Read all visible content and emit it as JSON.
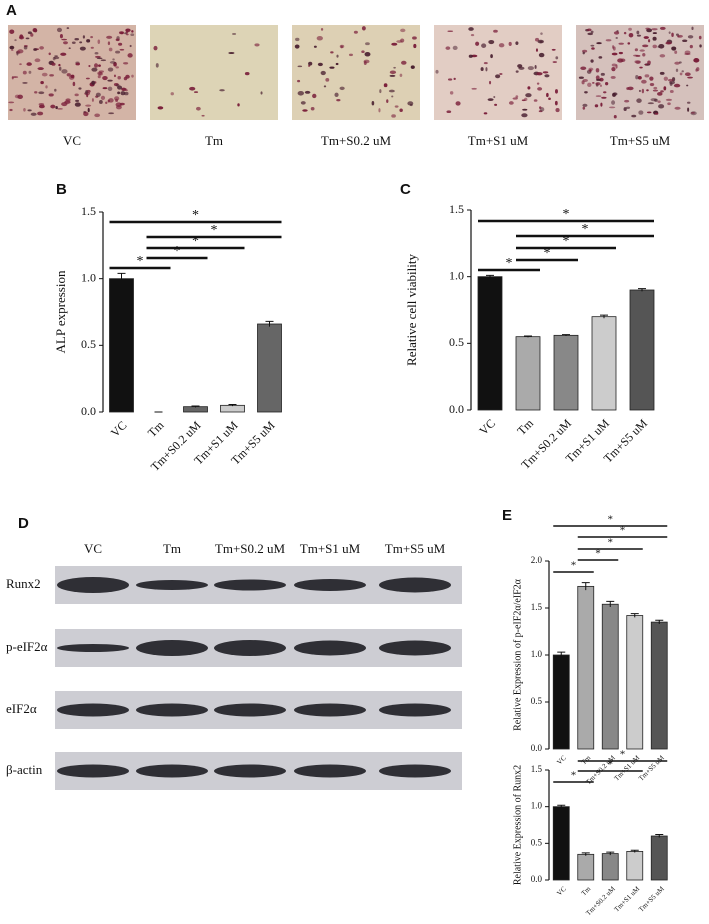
{
  "panel_labels": [
    "A",
    "B",
    "C",
    "D",
    "E"
  ],
  "panel_a": {
    "captions": [
      "VC",
      "Tm",
      "Tm+S0.2 uM",
      "Tm+S1 uM",
      "Tm+S5 uM"
    ]
  },
  "panel_d": {
    "columns": [
      "VC",
      "Tm",
      "Tm+S0.2 uM",
      "Tm+S1 uM",
      "Tm+S5 uM"
    ],
    "rows": [
      "Runx2",
      "p-eIF2α",
      "eIF2α",
      "β-actin"
    ]
  },
  "chart_data": [
    {
      "type": "bar",
      "y_label": "ALP expression",
      "categories": [
        "VC",
        "Tm",
        "Tm+S0.2 uM",
        "Tm+S1 uM",
        "Tm+S5 uM"
      ],
      "values": [
        1.0,
        0,
        0.04,
        0.05,
        0.66
      ],
      "errors": [
        0.04,
        0,
        0.005,
        0.006,
        0.02
      ],
      "colors": [
        "#111111",
        "#ffffff",
        "#666666",
        "#cccccc",
        "#666666"
      ],
      "ylim": [
        0,
        1.5
      ],
      "yticks": [
        {
          "value": 0,
          "label": "0.0"
        },
        0.5,
        {
          "value": 1,
          "label": "1.0"
        },
        1.5
      ],
      "significance": [
        {
          "pair": [
            0,
            1
          ],
          "label": "*"
        },
        {
          "pair": [
            1,
            2
          ],
          "label": "*"
        },
        {
          "pair": [
            1,
            3
          ],
          "label": "*"
        },
        {
          "pair": [
            1,
            4
          ],
          "label": "*"
        },
        {
          "pair": [
            0,
            4
          ],
          "label": "*"
        }
      ]
    },
    {
      "type": "bar",
      "y_label": "Relative cell viability",
      "categories": [
        "VC",
        "Tm",
        "Tm+S0.2 uM",
        "Tm+S1 uM",
        "Tm+S5 uM"
      ],
      "values": [
        1.0,
        0.55,
        0.56,
        0.7,
        0.9
      ],
      "errors": [
        0.01,
        0.005,
        0.005,
        0.012,
        0.01
      ],
      "colors": [
        "#111111",
        "#aaaaaa",
        "#888888",
        "#cccccc",
        "#555555"
      ],
      "ylim": [
        0,
        1.5
      ],
      "yticks": [
        {
          "value": 0,
          "label": "0.0"
        },
        0.5,
        {
          "value": 1,
          "label": "1.0"
        },
        1.5
      ],
      "significance": [
        {
          "pair": [
            0,
            1
          ],
          "label": "*"
        },
        {
          "pair": [
            1,
            2
          ],
          "label": "*"
        },
        {
          "pair": [
            1,
            3
          ],
          "label": "*"
        },
        {
          "pair": [
            1,
            4
          ],
          "label": "*"
        },
        {
          "pair": [
            0,
            4
          ],
          "label": "*"
        }
      ]
    },
    {
      "type": "bar",
      "y_label": "Relative Expression of p-eIF2α/eIF2α",
      "categories": [
        "VC",
        "Tm",
        "Tm+S0.2 uM",
        "Tm+S1 uM",
        "Tm+S5 uM"
      ],
      "values": [
        1.0,
        1.73,
        1.54,
        1.42,
        1.35
      ],
      "errors": [
        0.03,
        0.04,
        0.03,
        0.02,
        0.02
      ],
      "colors": [
        "#111111",
        "#aaaaaa",
        "#888888",
        "#cccccc",
        "#555555"
      ],
      "ylim": [
        0,
        2
      ],
      "yticks": [
        {
          "value": 0,
          "label": "0.0"
        },
        0.5,
        {
          "value": 1,
          "label": "1.0"
        },
        1.5,
        {
          "value": 2,
          "label": "2.0"
        }
      ],
      "significance": [
        {
          "pair": [
            0,
            1
          ],
          "label": "*"
        },
        {
          "pair": [
            1,
            2
          ],
          "label": "*"
        },
        {
          "pair": [
            1,
            3
          ],
          "label": "*"
        },
        {
          "pair": [
            1,
            4
          ],
          "label": "*"
        },
        {
          "pair": [
            0,
            4
          ],
          "label": "*"
        }
      ]
    },
    {
      "type": "bar",
      "y_label": "Relative Expression of Runx2",
      "categories": [
        "VC",
        "Tm",
        "Tm+S0.2 uM",
        "Tm+S1 uM",
        "Tm+S5 uM"
      ],
      "values": [
        1.0,
        0.35,
        0.36,
        0.39,
        0.6
      ],
      "errors": [
        0.02,
        0.02,
        0.02,
        0.015,
        0.02
      ],
      "colors": [
        "#111111",
        "#aaaaaa",
        "#888888",
        "#cccccc",
        "#555555"
      ],
      "ylim": [
        0,
        1.5
      ],
      "yticks": [
        {
          "value": 0,
          "label": "0.0"
        },
        0.5,
        {
          "value": 1,
          "label": "1.0"
        },
        1.5
      ],
      "significance": [
        {
          "pair": [
            0,
            1
          ],
          "label": "*"
        },
        {
          "pair": [
            1,
            3
          ],
          "label": "*"
        },
        {
          "pair": [
            1,
            4
          ],
          "label": "*"
        }
      ]
    }
  ]
}
